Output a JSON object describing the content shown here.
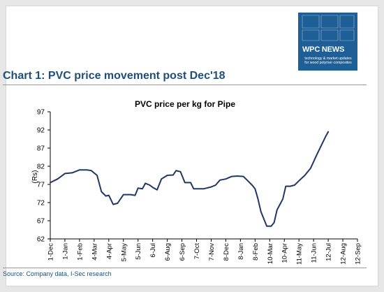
{
  "branding": {
    "logo_title": "WPC NEWS",
    "logo_sub_1": "technology & market updates",
    "logo_sub_2": "for wood polymer composites",
    "accent": "#1f5f97"
  },
  "heading": "Chart 1: PVC price movement post Dec'18",
  "source": "Source: Company data, I-Sec research",
  "chart_data": {
    "type": "line",
    "title": "PVC price per kg for Pipe",
    "xlabel": "",
    "ylabel": "(Rs)",
    "ylim": [
      62,
      97
    ],
    "yticks": [
      62,
      67,
      72,
      77,
      82,
      87,
      92,
      97
    ],
    "grid": false,
    "line_color": "#1f3864",
    "x_categories": [
      "1-Dec",
      "1-Jan",
      "1-Feb",
      "4-Mar",
      "4-Apr",
      "5-May",
      "5-Jun",
      "6-Jul",
      "6-Aug",
      "6-Sep",
      "7-Oct",
      "7-Nov",
      "8-Dec",
      "8-Jan",
      "8-Feb",
      "10-Mar",
      "10-Apr",
      "11-May",
      "11-Jun",
      "12-Jul",
      "12-Aug",
      "12-Sep"
    ],
    "series": [
      {
        "values": [
          [
            0,
            77.5
          ],
          [
            0.5,
            78.5
          ],
          [
            1.0,
            80.0
          ],
          [
            1.5,
            80.2
          ],
          [
            2.0,
            81.0
          ],
          [
            2.5,
            81.0
          ],
          [
            2.8,
            80.8
          ],
          [
            3.2,
            79.5
          ],
          [
            3.5,
            75.0
          ],
          [
            3.8,
            73.8
          ],
          [
            4.0,
            74.0
          ],
          [
            4.3,
            71.5
          ],
          [
            4.6,
            71.8
          ],
          [
            5.0,
            74.2
          ],
          [
            5.5,
            74.2
          ],
          [
            5.8,
            74.0
          ],
          [
            6.0,
            76.0
          ],
          [
            6.3,
            75.8
          ],
          [
            6.5,
            77.3
          ],
          [
            6.8,
            76.8
          ],
          [
            7.0,
            76.2
          ],
          [
            7.3,
            75.5
          ],
          [
            7.6,
            78.5
          ],
          [
            8.0,
            79.5
          ],
          [
            8.4,
            79.6
          ],
          [
            8.6,
            80.8
          ],
          [
            8.9,
            80.5
          ],
          [
            9.2,
            77.5
          ],
          [
            9.6,
            77.5
          ],
          [
            9.8,
            75.8
          ],
          [
            10.5,
            75.8
          ],
          [
            11.0,
            76.3
          ],
          [
            11.3,
            76.8
          ],
          [
            11.6,
            78.2
          ],
          [
            12.0,
            78.5
          ],
          [
            12.4,
            79.2
          ],
          [
            12.8,
            79.3
          ],
          [
            13.2,
            79.2
          ],
          [
            13.5,
            78.0
          ],
          [
            13.8,
            76.8
          ],
          [
            14.0,
            75.8
          ],
          [
            14.2,
            73.0
          ],
          [
            14.4,
            69.5
          ],
          [
            14.6,
            67.5
          ],
          [
            14.8,
            65.5
          ],
          [
            15.1,
            65.5
          ],
          [
            15.3,
            66.5
          ],
          [
            15.5,
            70.0
          ],
          [
            15.7,
            71.5
          ],
          [
            15.9,
            73.0
          ],
          [
            16.1,
            76.5
          ],
          [
            16.4,
            76.5
          ],
          [
            16.7,
            76.8
          ],
          [
            17.0,
            78.0
          ],
          [
            17.4,
            79.5
          ],
          [
            17.8,
            81.5
          ],
          [
            18.2,
            85.0
          ],
          [
            18.5,
            87.5
          ],
          [
            18.8,
            90.0
          ],
          [
            19.0,
            91.5
          ]
        ]
      }
    ]
  }
}
